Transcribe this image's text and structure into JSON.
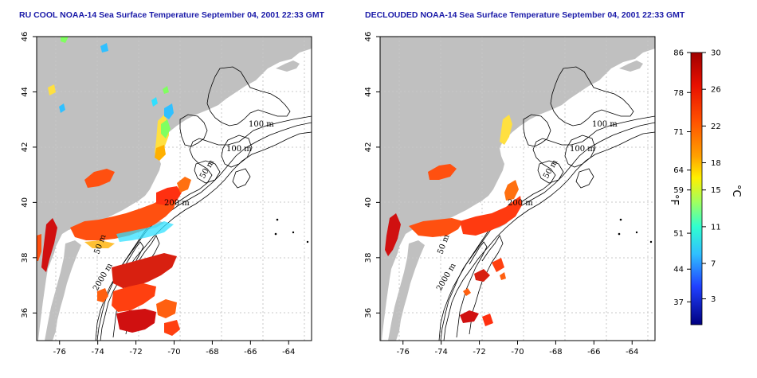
{
  "titles": {
    "left": "RU COOL NOAA-14 Sea Surface Temperature September 04, 2001 22:33 GMT",
    "right": "DECLOUDED NOAA-14 Sea Surface Temperature September 04, 2001 22:33 GMT"
  },
  "axes": {
    "x_ticks": [
      "-76",
      "-74",
      "-72",
      "-70",
      "-68",
      "-66",
      "-64"
    ],
    "y_ticks": [
      "46",
      "44",
      "42",
      "40",
      "38",
      "36"
    ],
    "x_range": [
      -77.2,
      -62.8
    ],
    "y_range": [
      35.0,
      46.0
    ]
  },
  "contour_labels": [
    "100 m",
    "100 m",
    "50 m",
    "200 m",
    "50 m",
    "2000 m"
  ],
  "colorbar": {
    "fahrenheit_unit": "°F",
    "celsius_unit": "°C",
    "fahrenheit_ticks": [
      "86",
      "78",
      "71",
      "64",
      "59",
      "51",
      "44",
      "37"
    ],
    "celsius_ticks": [
      "30",
      "26",
      "22",
      "18",
      "15",
      "11",
      "7",
      "3"
    ],
    "colors": {
      "top": "#a00000",
      "high": "#ff3000",
      "warm": "#ffb000",
      "mid": "#c8ff40",
      "cool": "#30e0ff",
      "cold": "#2030ff",
      "bottom": "#000080"
    }
  },
  "colors": {
    "land": "#c0c0c0",
    "water": "#ffffff",
    "grid": "#c8c8c8",
    "title": "#1a1aa8"
  }
}
